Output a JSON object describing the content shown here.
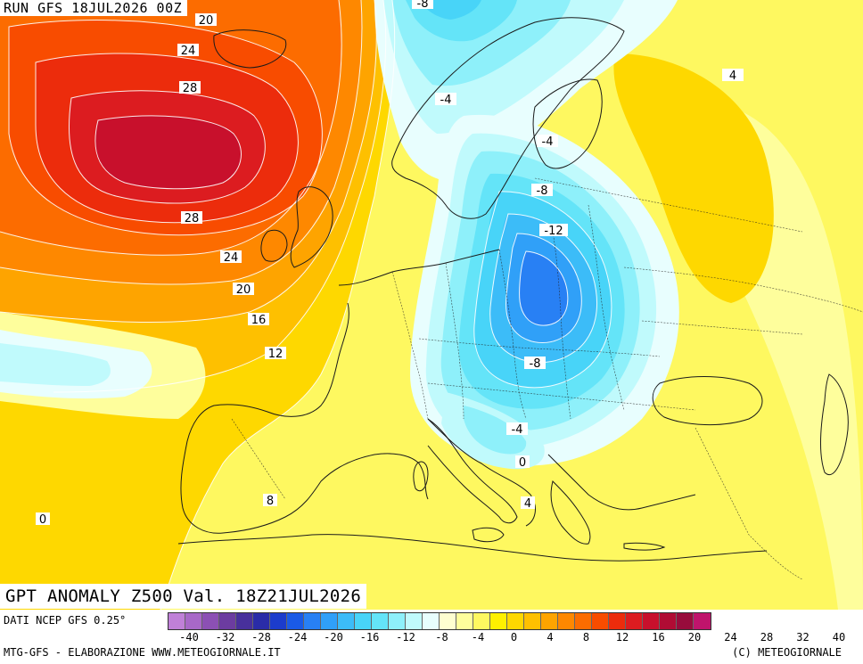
{
  "header": {
    "run_label": "RUN GFS 18JUL2026 00Z"
  },
  "map": {
    "title": "GPT ANOMALY Z500 Val. 18Z21JUL2026",
    "contour_labels": [
      "-8",
      "20",
      "24",
      "28",
      "-4",
      "-4",
      "4",
      "-8",
      "28",
      "-12",
      "24",
      "20",
      "16",
      "12",
      "-8",
      "-4",
      "0",
      "8",
      "4",
      "0"
    ]
  },
  "footer": {
    "source": "DATI NCEP GFS 0.25°",
    "credit_left": "MTG-GFS - ELABORAZIONE WWW.METEOGIORNALE.IT",
    "credit_right": "(C) METEOGIORNALE"
  },
  "legend": {
    "colors": [
      "#c080d8",
      "#a868c8",
      "#8c50b4",
      "#6c3ca0",
      "#48309c",
      "#2a2ca8",
      "#1c3ccc",
      "#1a5ae6",
      "#2880f4",
      "#30a0f8",
      "#3cbcf8",
      "#48d4f8",
      "#64e4f8",
      "#8ef0fa",
      "#c0fafc",
      "#e8fefe",
      "#fefed0",
      "#fefe9c",
      "#fef860",
      "#fef000",
      "#fed800",
      "#fec000",
      "#fea400",
      "#fe8800",
      "#fc6c00",
      "#f84c00",
      "#ec2c0c",
      "#dc1c20",
      "#c8102c",
      "#b00c34",
      "#980c3c",
      "#c0146c"
    ],
    "tick_labels": [
      "-40",
      "-32",
      "-28",
      "-24",
      "-20",
      "-16",
      "-12",
      "-8",
      "-4",
      "0",
      "4",
      "8",
      "12",
      "16",
      "20",
      "24",
      "28",
      "32",
      "40"
    ]
  }
}
